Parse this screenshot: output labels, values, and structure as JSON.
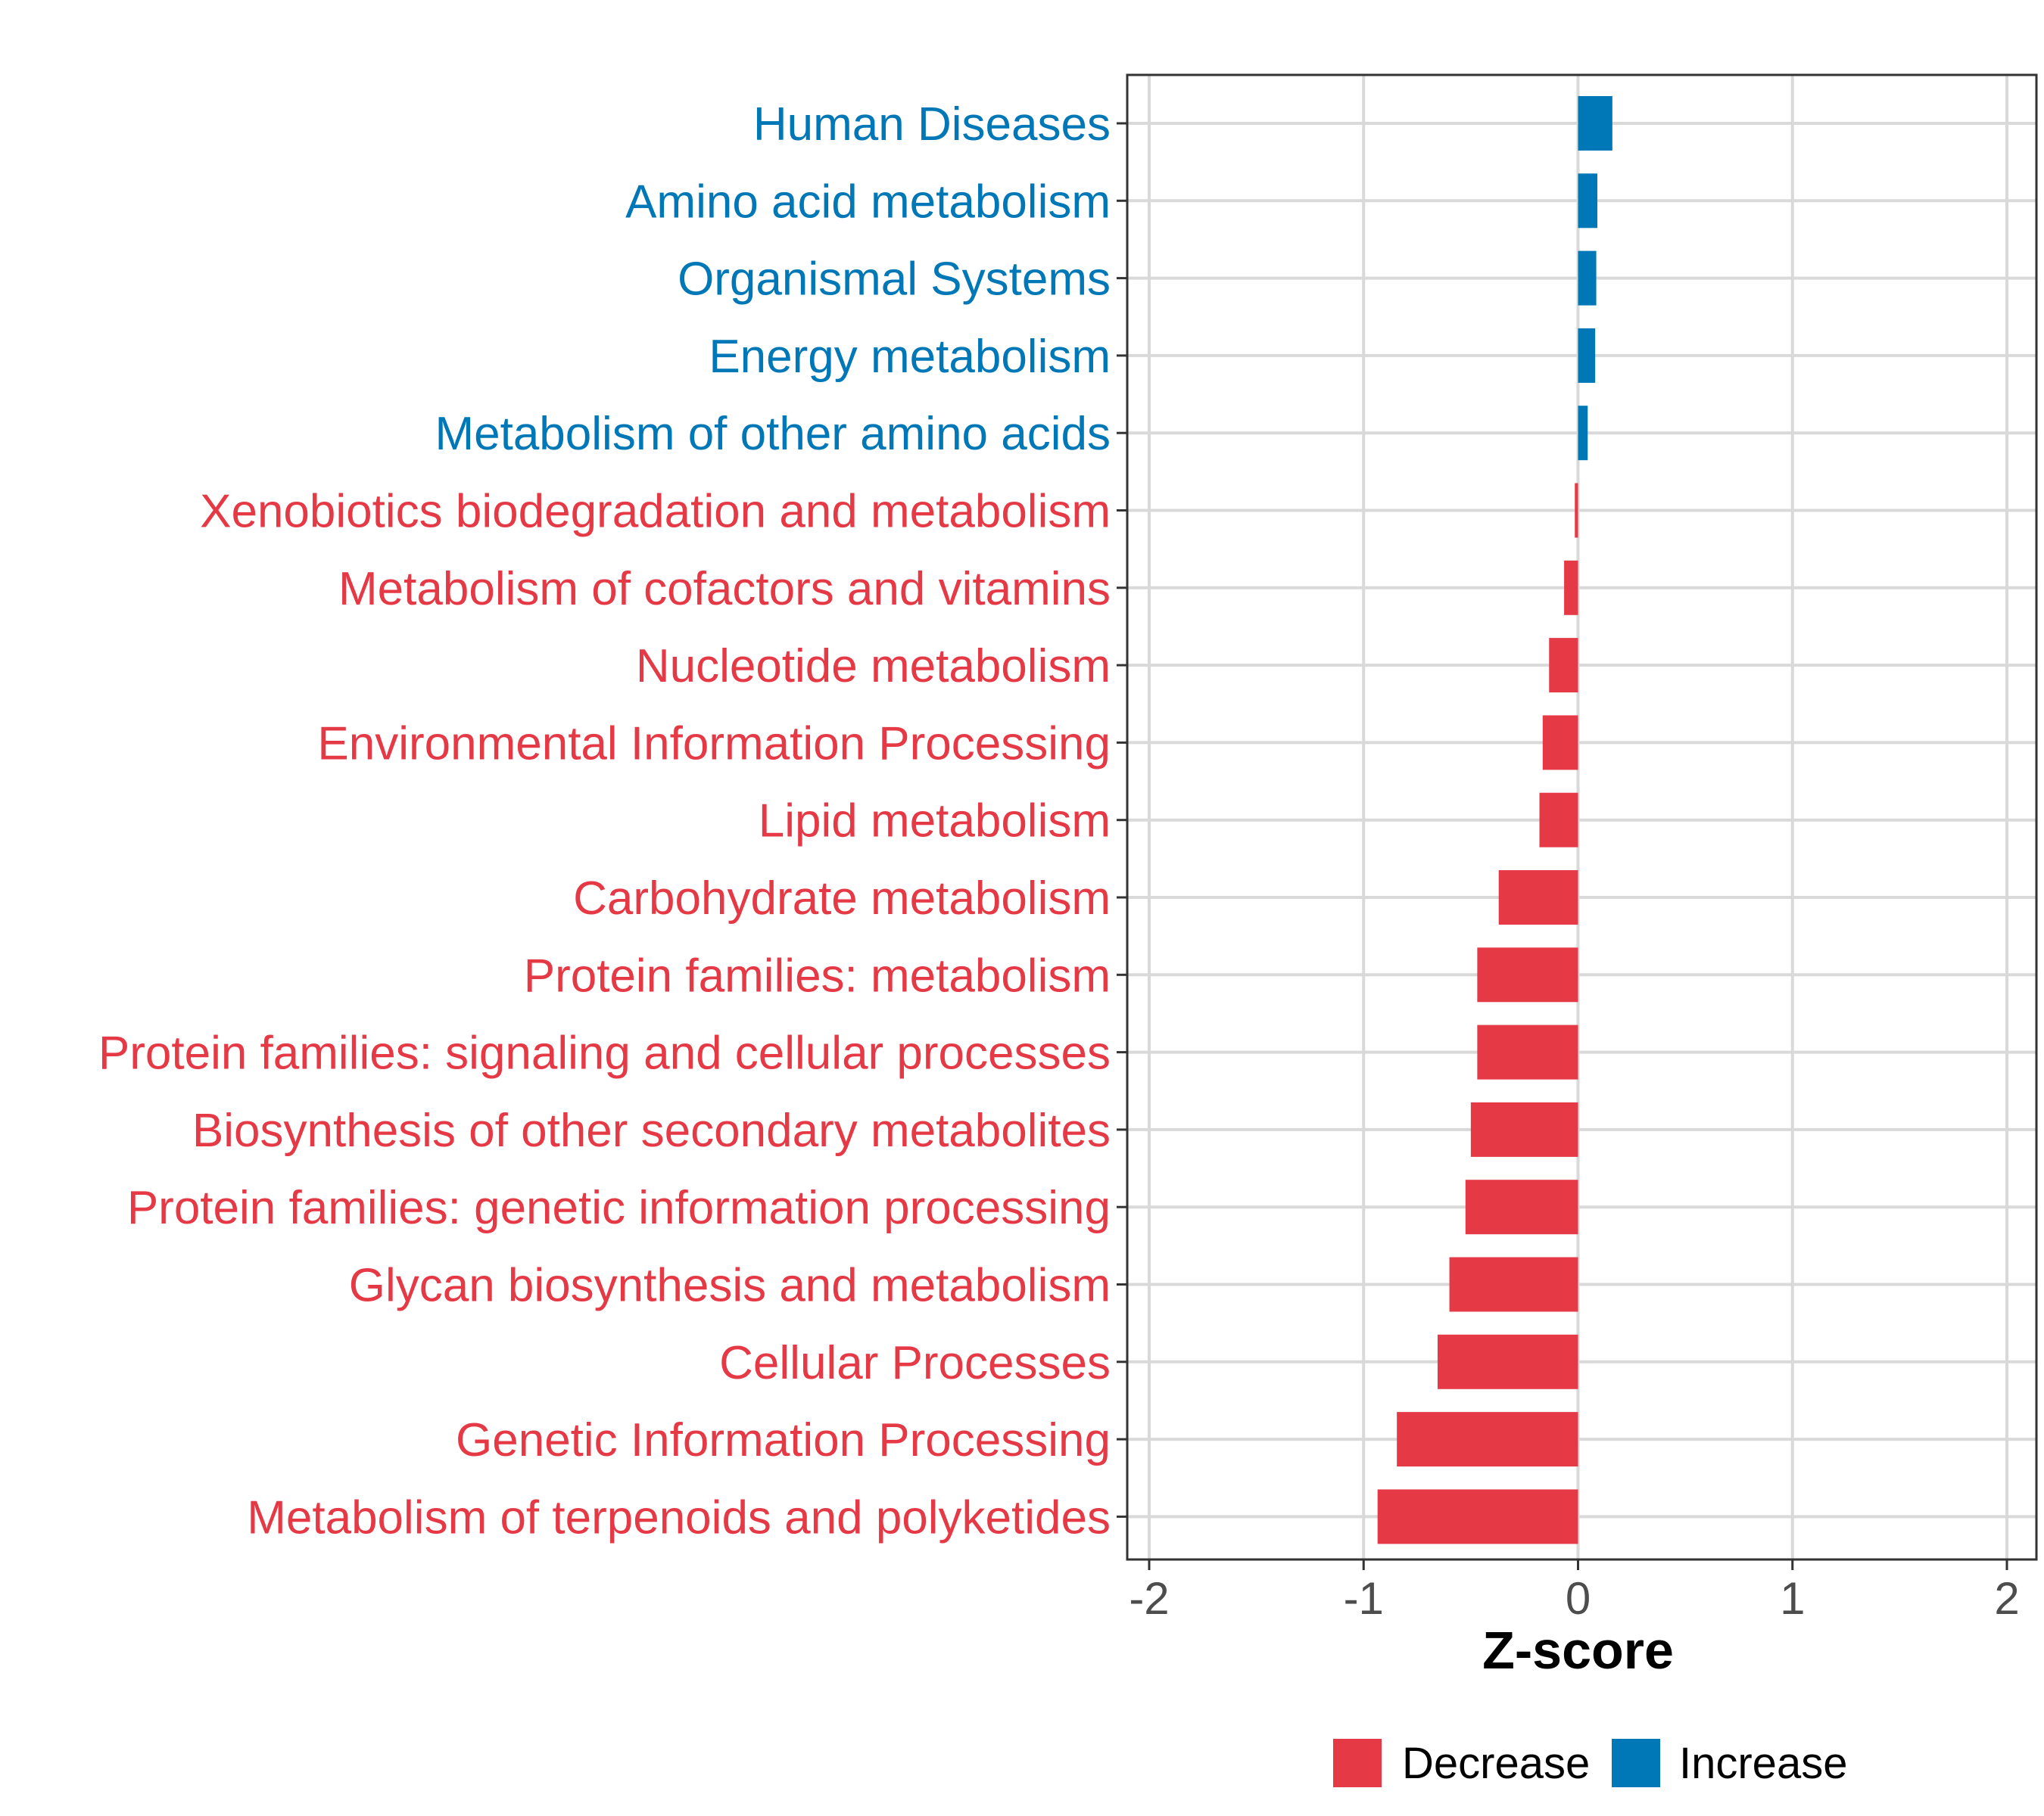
{
  "chart_data": {
    "type": "bar",
    "orientation": "horizontal",
    "xlabel": "Z-score",
    "ylabel": "",
    "xlim": [
      -2.0,
      2.1
    ],
    "x_ticks": [
      -2,
      -1,
      0,
      1,
      2
    ],
    "x_tick_labels": [
      "-2",
      "-1",
      "0",
      "1",
      "2"
    ],
    "grid": true,
    "categories": [
      "Human Diseases",
      "Amino acid metabolism",
      "Organismal Systems",
      "Energy metabolism",
      "Metabolism of other amino acids",
      "Xenobiotics biodegradation and metabolism",
      "Metabolism of cofactors and vitamins",
      "Nucleotide metabolism",
      "Environmental Information Processing",
      "Lipid metabolism",
      "Carbohydrate metabolism",
      "Protein families: metabolism",
      "Protein families: signaling and cellular processes",
      "Biosynthesis of other secondary metabolites",
      "Protein families: genetic information processing",
      "Glycan biosynthesis and metabolism",
      "Cellular Processes",
      "Genetic Information Processing",
      "Metabolism of terpenoids and polyketides"
    ],
    "values": [
      0.16,
      0.09,
      0.085,
      0.08,
      0.045,
      -0.015,
      -0.065,
      -0.135,
      -0.165,
      -0.18,
      -0.37,
      -0.47,
      -0.47,
      -0.5,
      -0.525,
      -0.6,
      -0.655,
      -0.845,
      -0.935
    ],
    "groups": [
      "Increase",
      "Increase",
      "Increase",
      "Increase",
      "Increase",
      "Decrease",
      "Decrease",
      "Decrease",
      "Decrease",
      "Decrease",
      "Decrease",
      "Decrease",
      "Decrease",
      "Decrease",
      "Decrease",
      "Decrease",
      "Decrease",
      "Decrease",
      "Decrease"
    ],
    "legend": {
      "position": "bottom",
      "items": [
        {
          "label": "Decrease",
          "color": "#E63946"
        },
        {
          "label": "Increase",
          "color": "#0077B6"
        }
      ]
    }
  },
  "colors": {
    "decrease": "#E63946",
    "increase": "#0077B6"
  }
}
